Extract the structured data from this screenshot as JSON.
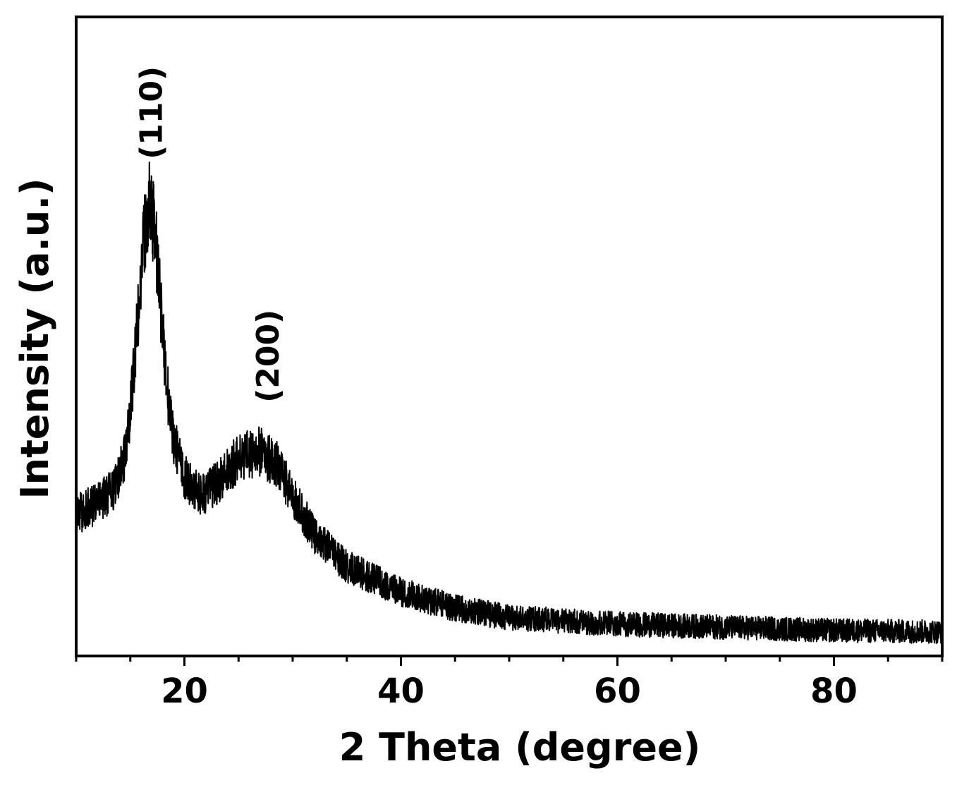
{
  "chart_data": {
    "type": "line",
    "title": "",
    "xlabel": "2 Theta (degree)",
    "ylabel": "Intensity (a.u.)",
    "xlim": [
      10,
      90
    ],
    "ylim": [
      0,
      1
    ],
    "x_ticks": [
      20,
      40,
      60,
      80
    ],
    "x_minor_step": 5,
    "y_ticks": [],
    "y_tick_labels_shown": false,
    "grid": false,
    "legend": "none",
    "line_color": "#000000",
    "annotations": [
      {
        "text": "(110)",
        "x": 17.0,
        "rotation": -90
      },
      {
        "text": "(200)",
        "x": 27.8,
        "rotation": -90
      }
    ],
    "series": [
      {
        "noise_amplitude": 0.045,
        "profile": [
          {
            "x": 10,
            "y": 0.22
          },
          {
            "x": 12,
            "y": 0.24
          },
          {
            "x": 13.5,
            "y": 0.26
          },
          {
            "x": 14.5,
            "y": 0.31
          },
          {
            "x": 15.2,
            "y": 0.42
          },
          {
            "x": 15.8,
            "y": 0.55
          },
          {
            "x": 16.3,
            "y": 0.66
          },
          {
            "x": 16.8,
            "y": 0.71
          },
          {
            "x": 17.3,
            "y": 0.66
          },
          {
            "x": 17.8,
            "y": 0.55
          },
          {
            "x": 18.4,
            "y": 0.42
          },
          {
            "x": 19.0,
            "y": 0.34
          },
          {
            "x": 20.0,
            "y": 0.28
          },
          {
            "x": 21.5,
            "y": 0.25
          },
          {
            "x": 23.0,
            "y": 0.27
          },
          {
            "x": 25.0,
            "y": 0.31
          },
          {
            "x": 27.0,
            "y": 0.32
          },
          {
            "x": 28.5,
            "y": 0.3
          },
          {
            "x": 30.0,
            "y": 0.25
          },
          {
            "x": 32.0,
            "y": 0.19
          },
          {
            "x": 35.0,
            "y": 0.14
          },
          {
            "x": 40.0,
            "y": 0.1
          },
          {
            "x": 45.0,
            "y": 0.075
          },
          {
            "x": 50.0,
            "y": 0.06
          },
          {
            "x": 55.0,
            "y": 0.055
          },
          {
            "x": 60.0,
            "y": 0.05
          },
          {
            "x": 70.0,
            "y": 0.045
          },
          {
            "x": 80.0,
            "y": 0.04
          },
          {
            "x": 90.0,
            "y": 0.038
          }
        ]
      }
    ]
  }
}
